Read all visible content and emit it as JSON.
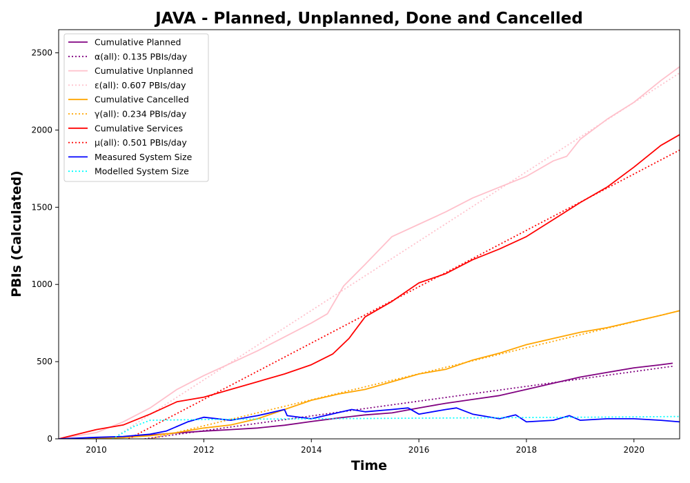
{
  "chart_data": {
    "type": "line",
    "title": "JAVA - Planned, Unplanned, Done  and Cancelled",
    "xlabel": "Time",
    "ylabel": "PBIs (Calculated)",
    "xlim": [
      2009.3,
      2020.85
    ],
    "ylim": [
      0,
      2650
    ],
    "xticks": [
      2010,
      2012,
      2014,
      2016,
      2018,
      2020
    ],
    "yticks": [
      0,
      500,
      1000,
      1500,
      2000,
      2500
    ],
    "grid": false,
    "legend": "top-left",
    "series": [
      {
        "name": "Cumulative Planned",
        "color": "#800080",
        "style": "solid",
        "x": [
          2009.3,
          2010,
          2010.5,
          2011,
          2011.5,
          2012,
          2012.5,
          2013,
          2013.5,
          2014,
          2014.5,
          2015,
          2015.5,
          2016,
          2016.5,
          2017,
          2017.5,
          2018,
          2018.5,
          2019,
          2019.5,
          2020,
          2020.5,
          2020.72
        ],
        "y": [
          0,
          5,
          12,
          25,
          38,
          50,
          60,
          70,
          88,
          112,
          135,
          155,
          168,
          200,
          230,
          255,
          280,
          320,
          360,
          400,
          430,
          460,
          480,
          490
        ]
      },
      {
        "name": "α(all): 0.135 PBIs/day",
        "color": "#800080",
        "style": "dotted",
        "x": [
          2010.9,
          2020.72
        ],
        "y": [
          0,
          470
        ]
      },
      {
        "name": "Cumulative Unplanned",
        "color": "#ffc0cb",
        "style": "solid",
        "x": [
          2009.3,
          2010,
          2010.5,
          2011,
          2011.5,
          2012,
          2012.5,
          2013,
          2013.5,
          2014,
          2014.3,
          2014.6,
          2015,
          2015.5,
          2016,
          2016.5,
          2017,
          2017.5,
          2018,
          2018.5,
          2018.75,
          2019,
          2019.5,
          2020,
          2020.5,
          2020.85
        ],
        "y": [
          0,
          40,
          110,
          200,
          320,
          410,
          490,
          570,
          660,
          750,
          810,
          990,
          1130,
          1310,
          1390,
          1470,
          1560,
          1630,
          1700,
          1800,
          1830,
          1940,
          2070,
          2180,
          2320,
          2410
        ]
      },
      {
        "name": "ε(all): 0.607 PBIs/day",
        "color": "#ffc0cb",
        "style": "dotted",
        "x": [
          2010.3,
          2020.85
        ],
        "y": [
          0,
          2370
        ]
      },
      {
        "name": "Cumulative Cancelled",
        "color": "#ffa500",
        "style": "solid",
        "x": [
          2009.3,
          2010,
          2010.5,
          2011,
          2011.5,
          2012,
          2012.5,
          2013,
          2013.5,
          2014,
          2014.5,
          2015,
          2015.5,
          2016,
          2016.5,
          2017,
          2017.5,
          2018,
          2018.5,
          2019,
          2019.5,
          2020,
          2020.5,
          2020.85
        ],
        "y": [
          0,
          2,
          8,
          20,
          40,
          70,
          90,
          130,
          190,
          250,
          290,
          320,
          370,
          420,
          450,
          510,
          555,
          610,
          650,
          690,
          720,
          760,
          800,
          830
        ]
      },
      {
        "name": "γ(all): 0.234 PBIs/day",
        "color": "#ffa500",
        "style": "dotted",
        "x": [
          2011.0,
          2020.85
        ],
        "y": [
          0,
          830
        ]
      },
      {
        "name": "Cumulative Services",
        "color": "#ff0000",
        "style": "solid",
        "x": [
          2009.3,
          2010,
          2010.5,
          2011,
          2011.5,
          2012,
          2012.5,
          2013,
          2013.5,
          2014,
          2014.4,
          2014.7,
          2015,
          2015.5,
          2016,
          2016.5,
          2017,
          2017.5,
          2018,
          2018.5,
          2019,
          2019.5,
          2020,
          2020.5,
          2020.85
        ],
        "y": [
          0,
          60,
          90,
          160,
          240,
          270,
          320,
          370,
          420,
          480,
          550,
          650,
          790,
          890,
          1010,
          1070,
          1160,
          1230,
          1310,
          1420,
          1530,
          1630,
          1760,
          1900,
          1970
        ]
      },
      {
        "name": "μ(all): 0.501 PBIs/day",
        "color": "#ff0000",
        "style": "dotted",
        "x": [
          2010.6,
          2020.85
        ],
        "y": [
          0,
          1870
        ]
      },
      {
        "name": "Measured System Size",
        "color": "#0000ff",
        "style": "solid",
        "x": [
          2009.3,
          2010,
          2010.5,
          2011,
          2011.3,
          2011.7,
          2012,
          2012.5,
          2013,
          2013.5,
          2013.55,
          2014,
          2014.5,
          2014.75,
          2015,
          2015.5,
          2015.8,
          2016,
          2016.5,
          2016.7,
          2017,
          2017.5,
          2017.8,
          2018,
          2018.5,
          2018.8,
          2019,
          2019.5,
          2020,
          2020.5,
          2020.85
        ],
        "y": [
          0,
          10,
          15,
          30,
          50,
          110,
          140,
          120,
          150,
          190,
          150,
          130,
          170,
          190,
          175,
          190,
          200,
          160,
          190,
          200,
          160,
          130,
          155,
          110,
          120,
          150,
          120,
          130,
          130,
          120,
          110
        ]
      },
      {
        "name": "Modelled System Size",
        "color": "#00ffff",
        "style": "dotted",
        "x": [
          2010.3,
          2010.7,
          2011,
          2012,
          2013,
          2014,
          2015,
          2016,
          2017,
          2018,
          2019,
          2020,
          2020.85
        ],
        "y": [
          0,
          80,
          120,
          125,
          128,
          130,
          132,
          134,
          136,
          138,
          140,
          142,
          145
        ]
      }
    ]
  }
}
